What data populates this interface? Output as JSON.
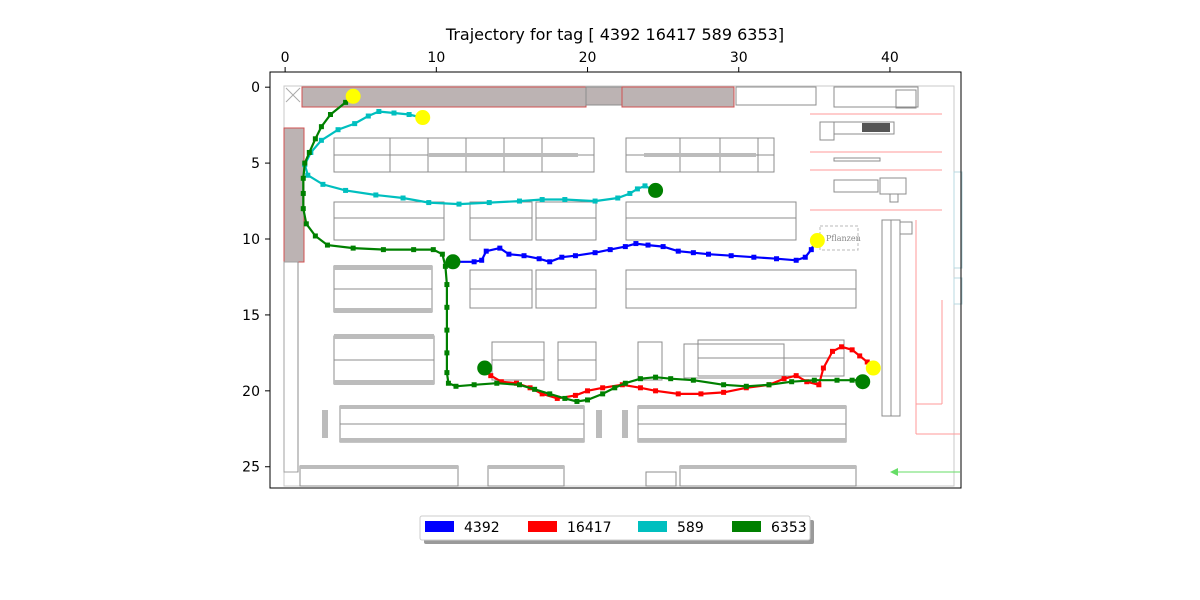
{
  "chart_data": {
    "type": "line",
    "title": "Trajectory for tag [ 4392 16417   589  6353]",
    "x_ticks": [
      "0",
      "10",
      "20",
      "30",
      "40"
    ],
    "y_ticks": [
      "0",
      "5",
      "10",
      "15",
      "20",
      "25"
    ],
    "xlim": [
      -1,
      44.7
    ],
    "ylim": [
      26.4,
      -1
    ],
    "x_axis_position": "top",
    "background": "warehouse floor plan",
    "legend_placement": "bottom-center",
    "series": [
      {
        "name": "4392",
        "color": "#0000ff",
        "points": [
          [
            11.3,
            11.5
          ],
          [
            12.5,
            11.5
          ],
          [
            13.0,
            11.4
          ],
          [
            13.3,
            10.8
          ],
          [
            14.2,
            10.6
          ],
          [
            14.8,
            11.0
          ],
          [
            15.8,
            11.1
          ],
          [
            16.8,
            11.3
          ],
          [
            17.5,
            11.5
          ],
          [
            18.3,
            11.2
          ],
          [
            19.2,
            11.1
          ],
          [
            20.5,
            10.9
          ],
          [
            21.5,
            10.7
          ],
          [
            22.5,
            10.5
          ],
          [
            23.2,
            10.3
          ],
          [
            24.0,
            10.4
          ],
          [
            25.0,
            10.5
          ],
          [
            26.0,
            10.8
          ],
          [
            27.0,
            10.9
          ],
          [
            28.0,
            11.0
          ],
          [
            29.5,
            11.1
          ],
          [
            31.0,
            11.2
          ],
          [
            32.5,
            11.3
          ],
          [
            33.8,
            11.4
          ],
          [
            34.4,
            11.2
          ],
          [
            34.8,
            10.7
          ],
          [
            35.1,
            10.1
          ]
        ]
      },
      {
        "name": "16417",
        "color": "#ff0000",
        "points": [
          [
            13.2,
            18.4
          ],
          [
            13.6,
            19.0
          ],
          [
            14.3,
            19.4
          ],
          [
            15.3,
            19.5
          ],
          [
            16.2,
            19.8
          ],
          [
            17.0,
            20.2
          ],
          [
            18.0,
            20.5
          ],
          [
            19.2,
            20.3
          ],
          [
            20.0,
            20.0
          ],
          [
            21.0,
            19.8
          ],
          [
            22.3,
            19.6
          ],
          [
            23.5,
            19.8
          ],
          [
            24.5,
            20.0
          ],
          [
            26.0,
            20.2
          ],
          [
            27.5,
            20.2
          ],
          [
            29.0,
            20.1
          ],
          [
            30.5,
            19.8
          ],
          [
            32.0,
            19.6
          ],
          [
            33.0,
            19.2
          ],
          [
            33.8,
            19.0
          ],
          [
            34.5,
            19.4
          ],
          [
            35.3,
            19.6
          ],
          [
            35.6,
            18.5
          ],
          [
            36.2,
            17.4
          ],
          [
            36.8,
            17.1
          ],
          [
            37.5,
            17.3
          ],
          [
            38.0,
            17.7
          ],
          [
            38.5,
            18.1
          ],
          [
            38.9,
            18.6
          ]
        ]
      },
      {
        "name": "589",
        "color": "#00bfbf",
        "points": [
          [
            9.0,
            2.0
          ],
          [
            8.2,
            1.8
          ],
          [
            7.2,
            1.7
          ],
          [
            6.2,
            1.6
          ],
          [
            5.5,
            1.9
          ],
          [
            4.6,
            2.4
          ],
          [
            3.5,
            2.8
          ],
          [
            2.4,
            3.5
          ],
          [
            1.7,
            4.3
          ],
          [
            1.3,
            5.1
          ],
          [
            1.5,
            5.8
          ],
          [
            2.5,
            6.4
          ],
          [
            4.0,
            6.8
          ],
          [
            6.0,
            7.1
          ],
          [
            7.8,
            7.3
          ],
          [
            9.5,
            7.6
          ],
          [
            11.5,
            7.7
          ],
          [
            13.5,
            7.6
          ],
          [
            15.5,
            7.5
          ],
          [
            17.0,
            7.4
          ],
          [
            18.5,
            7.4
          ],
          [
            20.5,
            7.5
          ],
          [
            22.0,
            7.3
          ],
          [
            22.8,
            7.0
          ],
          [
            23.3,
            6.7
          ],
          [
            23.8,
            6.5
          ],
          [
            24.4,
            6.8
          ]
        ]
      },
      {
        "name": "6353",
        "color": "#008000",
        "points": [
          [
            4.5,
            0.6
          ],
          [
            4.0,
            1.0
          ],
          [
            3.0,
            1.8
          ],
          [
            2.4,
            2.6
          ],
          [
            2.0,
            3.4
          ],
          [
            1.6,
            4.3
          ],
          [
            1.3,
            5.0
          ],
          [
            1.2,
            6.0
          ],
          [
            1.2,
            7.0
          ],
          [
            1.2,
            8.0
          ],
          [
            1.4,
            9.0
          ],
          [
            2.0,
            9.8
          ],
          [
            2.8,
            10.4
          ],
          [
            4.5,
            10.6
          ],
          [
            6.5,
            10.7
          ],
          [
            8.5,
            10.7
          ],
          [
            9.8,
            10.7
          ],
          [
            10.4,
            11.0
          ],
          [
            10.6,
            11.8
          ],
          [
            10.7,
            13.0
          ],
          [
            10.7,
            14.5
          ],
          [
            10.7,
            16.0
          ],
          [
            10.7,
            17.5
          ],
          [
            10.7,
            18.8
          ],
          [
            10.8,
            19.5
          ],
          [
            11.3,
            19.7
          ],
          [
            12.5,
            19.6
          ],
          [
            14.0,
            19.5
          ],
          [
            15.5,
            19.6
          ],
          [
            16.5,
            19.9
          ],
          [
            17.5,
            20.2
          ],
          [
            18.5,
            20.5
          ],
          [
            19.3,
            20.7
          ],
          [
            20.0,
            20.6
          ],
          [
            21.0,
            20.2
          ],
          [
            21.8,
            19.8
          ],
          [
            22.5,
            19.5
          ],
          [
            23.5,
            19.2
          ],
          [
            24.5,
            19.1
          ],
          [
            25.5,
            19.2
          ],
          [
            27.0,
            19.3
          ],
          [
            29.0,
            19.6
          ],
          [
            30.5,
            19.7
          ],
          [
            32.0,
            19.6
          ],
          [
            33.5,
            19.4
          ],
          [
            35.0,
            19.3
          ],
          [
            36.5,
            19.3
          ],
          [
            37.5,
            19.3
          ],
          [
            38.2,
            19.3
          ]
        ]
      }
    ],
    "markers": [
      {
        "label": "start",
        "color": "#008000",
        "x": 11.1,
        "y": 11.5
      },
      {
        "label": "end",
        "color": "#ffff00",
        "x": 35.2,
        "y": 10.1
      },
      {
        "label": "start",
        "color": "#008000",
        "x": 13.2,
        "y": 18.5
      },
      {
        "label": "end",
        "color": "#ffff00",
        "x": 38.9,
        "y": 18.5
      },
      {
        "label": "start",
        "color": "#008000",
        "x": 24.5,
        "y": 6.8
      },
      {
        "label": "end",
        "color": "#ffff00",
        "x": 9.1,
        "y": 2.0
      },
      {
        "label": "start",
        "color": "#008000",
        "x": 38.2,
        "y": 19.4
      },
      {
        "label": "end",
        "color": "#ffff00",
        "x": 4.5,
        "y": 0.6
      }
    ]
  },
  "floorplan_labels": {
    "pflanzen": "Pflanzen"
  }
}
